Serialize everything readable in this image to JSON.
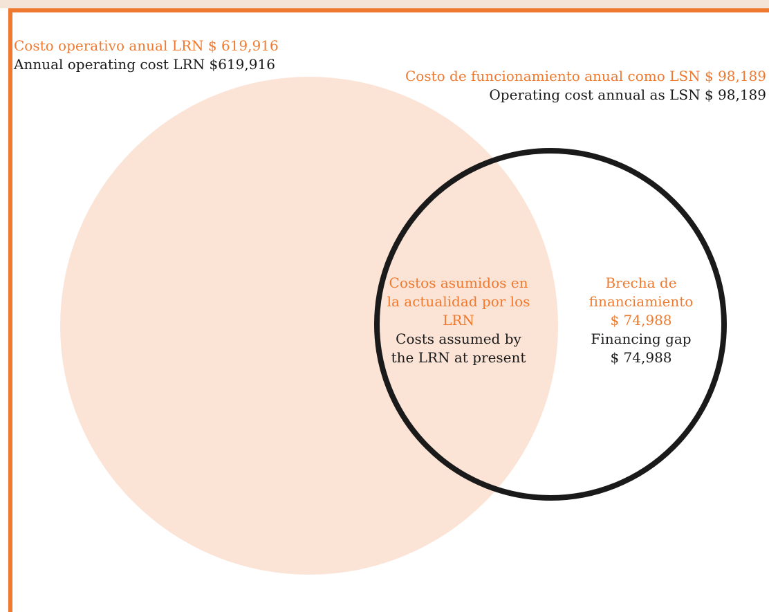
{
  "colors": {
    "accent": "#ef7a2f",
    "circle_fill": "#fbe3d6",
    "outline": "#1a1a1a",
    "text": "#1a1a1a"
  },
  "labels": {
    "lrn_es": "Costo operativo anual LRN $ 619,916",
    "lrn_en": "Annual operating cost LRN $619,916",
    "lsn_es": "Costo de funcionamiento anual como LSN $ 98,189",
    "lsn_en": "Operating cost annual as LSN $ 98,189"
  },
  "overlap": {
    "es": [
      "Costos asumidos en",
      "la  actualidad por los",
      "LRN"
    ],
    "en": [
      "Costs assumed by",
      "the LRN at present"
    ]
  },
  "gap": {
    "es": [
      "Brecha de",
      "financiamiento",
      "$ 74,988"
    ],
    "en": [
      "Financing gap",
      "$ 74,988"
    ]
  }
}
